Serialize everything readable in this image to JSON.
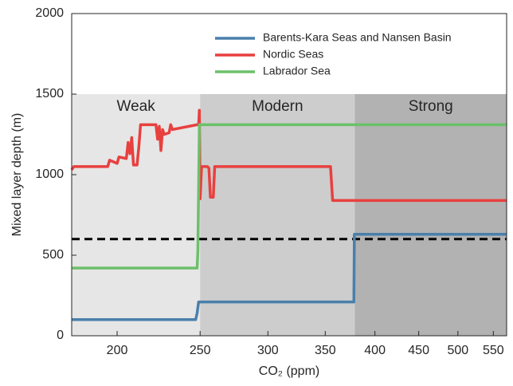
{
  "chart_data": {
    "type": "line",
    "x_label": "CO₂ (ppm)",
    "y_label": "Mixed layer depth (m)",
    "xscale": "log",
    "xlim": [
      177,
      570
    ],
    "xticks": [
      200,
      250,
      300,
      350,
      400,
      450,
      500,
      550
    ],
    "ylim": [
      0,
      2000
    ],
    "yticks": [
      0,
      500,
      1000,
      1500,
      2000
    ],
    "legend": "upper right",
    "threshold": 600,
    "regions": [
      {
        "label": "Weak",
        "start": 177,
        "end": 250,
        "top": 1500,
        "color": "#e6e6e6"
      },
      {
        "label": "Modern",
        "start": 250,
        "end": 379,
        "top": 1500,
        "color": "#cdcdcd"
      },
      {
        "label": "Strong",
        "start": 379,
        "end": 570,
        "top": 1500,
        "color": "#b2b2b2"
      }
    ],
    "series": [
      {
        "name": "Barents-Kara Seas and Nansen Basin",
        "color": "#4a7fab",
        "x": [
          177,
          247,
          248,
          249,
          378,
          378.5,
          570
        ],
        "values": [
          100,
          100,
          140,
          210,
          210,
          630,
          630
        ]
      },
      {
        "name": "Nordic Seas",
        "color": "#e8403f",
        "x": [
          177,
          178,
          195,
          196,
          200,
          201,
          205,
          206,
          207,
          208,
          209,
          211,
          212,
          213,
          214,
          222,
          223,
          224,
          225,
          226,
          227,
          230,
          231,
          232,
          248,
          249,
          249.5,
          250,
          251,
          255,
          256,
          257,
          259,
          260,
          261,
          355,
          357,
          570
        ],
        "values": [
          1030,
          1050,
          1050,
          1090,
          1070,
          1110,
          1100,
          1200,
          1130,
          1230,
          1060,
          1060,
          1170,
          1310,
          1310,
          1310,
          1220,
          1300,
          1150,
          1280,
          1250,
          1260,
          1310,
          1280,
          1310,
          1310,
          1400,
          850,
          1050,
          1050,
          1040,
          860,
          860,
          1050,
          1050,
          1050,
          840,
          840
        ]
      },
      {
        "name": "Labrador Sea",
        "color": "#6cc06a",
        "x": [
          177,
          248,
          248.5,
          249.5,
          570
        ],
        "values": [
          420,
          420,
          530,
          1310,
          1310
        ]
      }
    ]
  }
}
